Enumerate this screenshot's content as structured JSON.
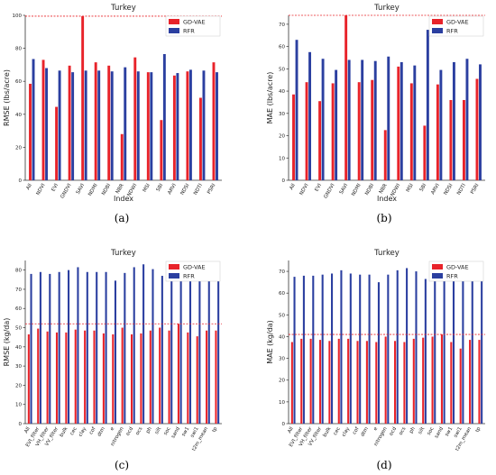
{
  "colors": {
    "gdvae": "#e8232a",
    "rfr": "#2b3fa0",
    "refline": "#e8232a"
  },
  "legend": {
    "series_a": "GD-VAE",
    "series_b": "RFR"
  },
  "captions": [
    "(a)",
    "(b)",
    "(c)",
    "(d)"
  ],
  "chart_data": [
    {
      "type": "bar",
      "title": "Turkey",
      "xlabel": "Index",
      "ylabel": "RMSE (lbs/acre)",
      "ylim": [
        0,
        100
      ],
      "yticks": [
        0,
        20,
        40,
        60,
        80,
        100
      ],
      "reference_line": 99.5,
      "legend_position": "top-right",
      "categories": [
        "All",
        "NDVI",
        "EVI",
        "GNDVI",
        "SAVI",
        "NDMI",
        "NDBI",
        "NBR",
        "NDWI",
        "MSI",
        "SBI",
        "ARVI",
        "NDSI",
        "NDTI",
        "PSRI"
      ],
      "series": [
        {
          "name": "GD-VAE",
          "values": [
            58.5,
            73,
            44.5,
            69.5,
            99.5,
            71.5,
            69.5,
            28,
            74.5,
            65.5,
            36.5,
            63.5,
            66,
            50,
            71.5
          ]
        },
        {
          "name": "RFR",
          "values": [
            73.5,
            68,
            66.5,
            65.5,
            66.5,
            66.5,
            66,
            68.5,
            66,
            65.5,
            76.5,
            65,
            67,
            66.5,
            65.5
          ]
        }
      ]
    },
    {
      "type": "bar",
      "title": "Turkey",
      "xlabel": "Index",
      "ylabel": "MAE (lbs/acre)",
      "ylim": [
        0,
        74
      ],
      "yticks": [
        0,
        10,
        20,
        30,
        40,
        50,
        60,
        70
      ],
      "reference_line": 74,
      "legend_position": "top-right",
      "categories": [
        "All",
        "NDVI",
        "EVI",
        "GNDVI",
        "SAVI",
        "NDMI",
        "NDBI",
        "NBR",
        "NDWI",
        "MSI",
        "SBI",
        "ARVI",
        "NDSI",
        "NDTI",
        "PSRI"
      ],
      "series": [
        {
          "name": "GD-VAE",
          "values": [
            38.5,
            44,
            35.5,
            43.5,
            74,
            44,
            45,
            22.5,
            51,
            43.5,
            24.5,
            43,
            36,
            36,
            45.5
          ]
        },
        {
          "name": "RFR",
          "values": [
            63,
            57.5,
            54.5,
            49.5,
            54,
            54,
            53.5,
            55.5,
            53,
            51.5,
            67.5,
            49.5,
            53,
            54.5,
            52
          ]
        }
      ]
    },
    {
      "type": "bar",
      "title": "Turkey",
      "xlabel": "",
      "ylabel": "RMSE (kg/da)",
      "ylim": [
        0,
        85
      ],
      "yticks": [
        0,
        10,
        20,
        30,
        40,
        50,
        60,
        70,
        80
      ],
      "reference_line": 52,
      "legend_position": "top-right",
      "categories": [
        "All",
        "EVI_filter",
        "VH_filter",
        "VV_filter",
        "bulk",
        "cec",
        "clay",
        "cof",
        "dtm",
        "e",
        "nitrogen",
        "ocd",
        "ocs",
        "ph",
        "silt",
        "soc",
        "sand",
        "sw1",
        "swi1",
        "t2m_mean",
        "tp"
      ],
      "series": [
        {
          "name": "GD-VAE",
          "values": [
            46.5,
            49.5,
            48,
            47.5,
            47.5,
            49,
            48.5,
            48.5,
            47,
            46.5,
            50,
            46.5,
            47,
            48.5,
            50,
            48.5,
            52,
            47.5,
            45.5,
            48.5,
            48.5
          ]
        },
        {
          "name": "RFR",
          "values": [
            78,
            79,
            78,
            79,
            80,
            81.5,
            79,
            79,
            79,
            74.5,
            78.5,
            81.5,
            83,
            80.5,
            77,
            77.5,
            82,
            80,
            80.5,
            80.5,
            83
          ]
        }
      ]
    },
    {
      "type": "bar",
      "title": "Turkey",
      "xlabel": "",
      "ylabel": "MAE (kg/da)",
      "ylim": [
        0,
        75
      ],
      "yticks": [
        0,
        10,
        20,
        30,
        40,
        50,
        60,
        70
      ],
      "reference_line": 41,
      "legend_position": "top-right",
      "categories": [
        "All",
        "EVI_filter",
        "VH_filter",
        "VV_filter",
        "bulk",
        "cec",
        "clay",
        "cof",
        "dtm",
        "e",
        "nitrogen",
        "ocd",
        "ocs",
        "ph",
        "silt",
        "soc",
        "sand",
        "sw1",
        "swi1",
        "t2m_mean",
        "tp"
      ],
      "series": [
        {
          "name": "GD-VAE",
          "values": [
            37.5,
            39,
            39,
            38.5,
            38,
            39,
            39,
            38,
            38,
            37.5,
            40,
            38,
            37.5,
            39,
            39.5,
            40,
            41,
            37.5,
            34.5,
            38.5,
            38.5
          ]
        },
        {
          "name": "RFR",
          "values": [
            67.5,
            68,
            68,
            68.5,
            69,
            70.5,
            69,
            68.5,
            68.5,
            65,
            68.5,
            70.5,
            71.5,
            70,
            66.5,
            67,
            72,
            71,
            69,
            70.5,
            71.5
          ]
        }
      ]
    }
  ]
}
